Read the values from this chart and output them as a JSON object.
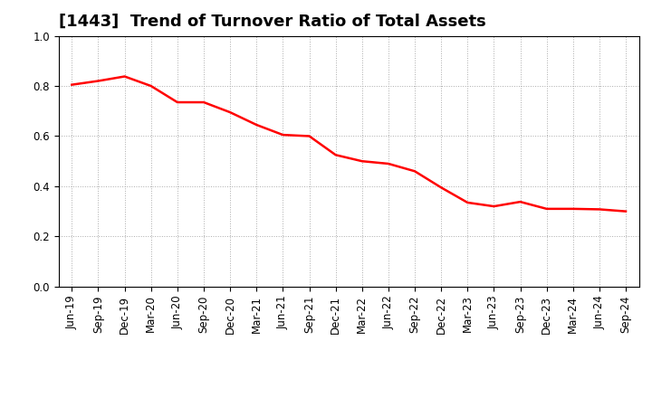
{
  "title": "[1443]  Trend of Turnover Ratio of Total Assets",
  "line_color": "#FF0000",
  "background_color": "#FFFFFF",
  "grid_color": "#AAAAAA",
  "ylim": [
    0.0,
    1.0
  ],
  "yticks": [
    0.0,
    0.2,
    0.4,
    0.6,
    0.8,
    1.0
  ],
  "x_labels": [
    "Jun-19",
    "Sep-19",
    "Dec-19",
    "Mar-20",
    "Jun-20",
    "Sep-20",
    "Dec-20",
    "Mar-21",
    "Jun-21",
    "Sep-21",
    "Dec-21",
    "Mar-22",
    "Jun-22",
    "Sep-22",
    "Dec-22",
    "Mar-23",
    "Jun-23",
    "Sep-23",
    "Dec-23",
    "Mar-24",
    "Jun-24",
    "Sep-24"
  ],
  "values": [
    0.805,
    0.82,
    0.838,
    0.8,
    0.735,
    0.735,
    0.695,
    0.645,
    0.605,
    0.6,
    0.525,
    0.5,
    0.49,
    0.46,
    0.395,
    0.335,
    0.32,
    0.338,
    0.31,
    0.31,
    0.308,
    0.3
  ],
  "title_fontsize": 13,
  "tick_fontsize": 8.5,
  "line_width": 1.8
}
